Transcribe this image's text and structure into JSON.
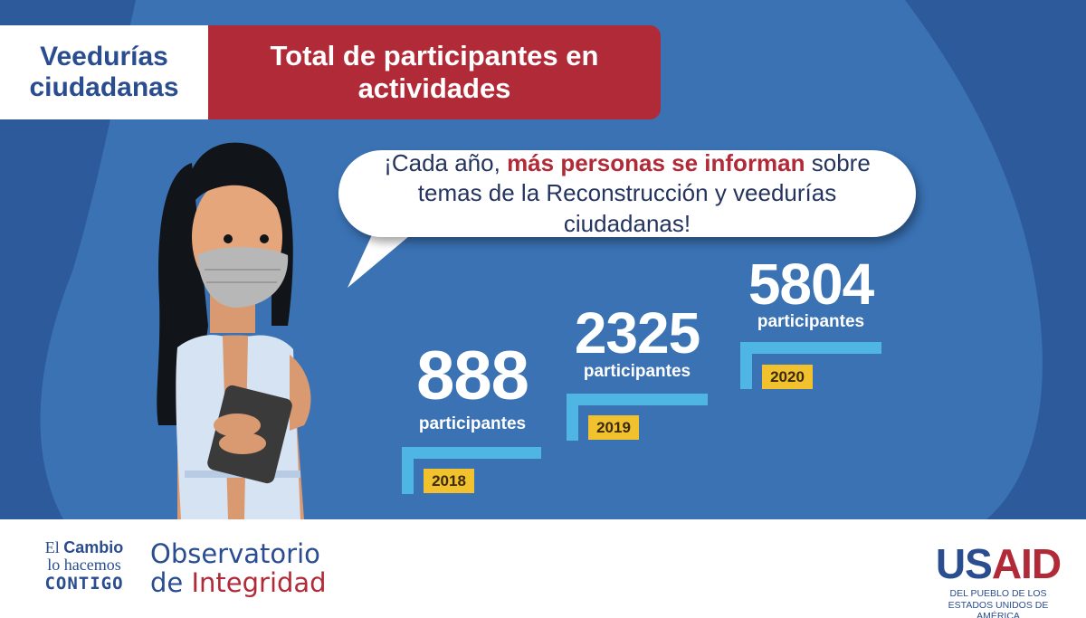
{
  "header": {
    "section_title": "Veedurías ciudadanas",
    "main_title": "Total de participantes en actividades"
  },
  "bubble": {
    "prefix": "¡Cada año, ",
    "highlight": "más personas se informan",
    "suffix": " sobre temas de la Reconstrucción y veedurías ciudadanas!"
  },
  "stats": [
    {
      "value": "888",
      "label": "participantes",
      "year": "2018"
    },
    {
      "value": "2325",
      "label": "participantes",
      "year": "2019"
    },
    {
      "value": "5804",
      "label": "participantes",
      "year": "2020"
    }
  ],
  "footer": {
    "campaign_line1_a": "El ",
    "campaign_line1_b": "Cambio",
    "campaign_line2": "lo hacemos",
    "campaign_line3": "CONTIGO",
    "observatorio_line1": "Observatorio",
    "observatorio_line2_a": "de ",
    "observatorio_line2_b": "Integridad",
    "usaid_us": "US",
    "usaid_aid": "AID",
    "usaid_tagline": "DEL PUEBLO DE LOS ESTADOS UNIDOS DE AMÉRICA"
  },
  "colors": {
    "background": "#2c5a9a",
    "shape_light": "#3a72b4",
    "brand_red": "#b02a37",
    "brand_blue": "#2a4d8f",
    "step_cyan": "#4fb6e3",
    "year_badge": "#f2c12e"
  }
}
